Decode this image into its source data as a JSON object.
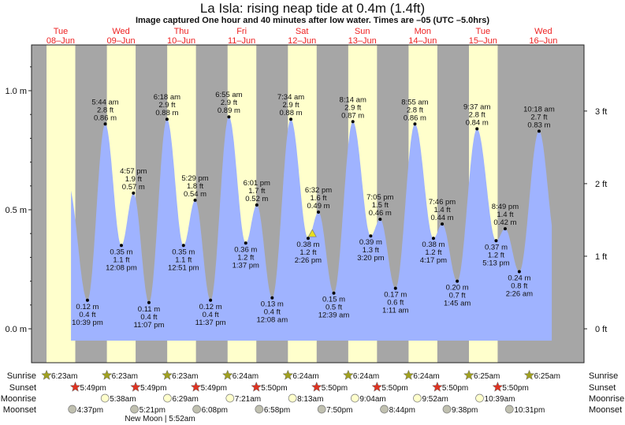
{
  "header": {
    "title": "La Isla: rising  neap tide at 0.4m (1.4ft)",
    "subtitle": "Image captured One hour and 40 minutes after low water. Times are –05 (UTC –5.0hrs)"
  },
  "colors": {
    "day": "#ffffcc",
    "night": "#a6a6a6",
    "water": "#9fb3ff",
    "day_label": "#ee2222",
    "sunrise_icon": "#a0a020",
    "sunset_icon": "#dd3322",
    "moonrise_icon": "#ffffcc",
    "moonset_icon": "#c0c0b0",
    "marker": "#e8e020"
  },
  "chart_data": {
    "type": "area",
    "title": "La Isla: rising  neap tide at 0.4m (1.4ft)",
    "days": [
      {
        "dow": "Tue",
        "date": "08–Jun"
      },
      {
        "dow": "Wed",
        "date": "09–Jun"
      },
      {
        "dow": "Thu",
        "date": "10–Jun"
      },
      {
        "dow": "Fri",
        "date": "11–Jun"
      },
      {
        "dow": "Sat",
        "date": "12–Jun"
      },
      {
        "dow": "Sun",
        "date": "13–Jun"
      },
      {
        "dow": "Mon",
        "date": "14–Jun"
      },
      {
        "dow": "Tue",
        "date": "15–Jun"
      },
      {
        "dow": "Wed",
        "date": "16–Jun"
      }
    ],
    "y_left": {
      "unit": "m",
      "ticks": [
        "0.0 m",
        "0.5 m",
        "1.0 m"
      ],
      "tick_values": [
        0,
        0.5,
        1.0
      ]
    },
    "y_right": {
      "unit": "ft",
      "ticks": [
        "0 ft",
        "1 ft",
        "2 ft",
        "3 ft"
      ],
      "tick_values": [
        0,
        1,
        2,
        3
      ]
    },
    "ylim_m": [
      -0.15,
      1.18
    ],
    "extremes": [
      {
        "day": 0,
        "time": "10:39 pm",
        "m": "0.12 m",
        "ft": "0.4 ft",
        "type": "low"
      },
      {
        "day": 1,
        "time": "5:44 am",
        "m": "0.86 m",
        "ft": "2.8 ft",
        "type": "high"
      },
      {
        "day": 1,
        "time": "12:08 pm",
        "m": "0.35 m",
        "ft": "1.1 ft",
        "type": "low"
      },
      {
        "day": 1,
        "time": "4:57 pm",
        "m": "0.57 m",
        "ft": "1.9 ft",
        "type": "high"
      },
      {
        "day": 1,
        "time": "11:07 pm",
        "m": "0.11 m",
        "ft": "0.4 ft",
        "type": "low"
      },
      {
        "day": 2,
        "time": "6:18 am",
        "m": "0.88 m",
        "ft": "2.9 ft",
        "type": "high"
      },
      {
        "day": 2,
        "time": "12:51 pm",
        "m": "0.35 m",
        "ft": "1.1 ft",
        "type": "low"
      },
      {
        "day": 2,
        "time": "5:29 pm",
        "m": "0.54 m",
        "ft": "1.8 ft",
        "type": "high"
      },
      {
        "day": 2,
        "time": "11:37 pm",
        "m": "0.12 m",
        "ft": "0.4 ft",
        "type": "low"
      },
      {
        "day": 3,
        "time": "6:55 am",
        "m": "0.89 m",
        "ft": "2.9 ft",
        "type": "high"
      },
      {
        "day": 3,
        "time": "1:37 pm",
        "m": "0.36 m",
        "ft": "1.2 ft",
        "type": "low"
      },
      {
        "day": 3,
        "time": "6:01 pm",
        "m": "0.52 m",
        "ft": "1.7 ft",
        "type": "high"
      },
      {
        "day": 4,
        "time": "12:08 am",
        "m": "0.13 m",
        "ft": "0.4 ft",
        "type": "low"
      },
      {
        "day": 4,
        "time": "7:34 am",
        "m": "0.88 m",
        "ft": "2.9 ft",
        "type": "high"
      },
      {
        "day": 4,
        "time": "2:26 pm",
        "m": "0.38 m",
        "ft": "1.2 ft",
        "type": "low"
      },
      {
        "day": 4,
        "time": "6:32 pm",
        "m": "0.49 m",
        "ft": "1.6 ft",
        "type": "high"
      },
      {
        "day": 5,
        "time": "12:39 am",
        "m": "0.15 m",
        "ft": "0.5 ft",
        "type": "low"
      },
      {
        "day": 5,
        "time": "8:14 am",
        "m": "0.87 m",
        "ft": "2.9 ft",
        "type": "high"
      },
      {
        "day": 5,
        "time": "3:20 pm",
        "m": "0.39 m",
        "ft": "1.3 ft",
        "type": "low"
      },
      {
        "day": 5,
        "time": "7:05 pm",
        "m": "0.46 m",
        "ft": "1.5 ft",
        "type": "high"
      },
      {
        "day": 6,
        "time": "1:11 am",
        "m": "0.17 m",
        "ft": "0.6 ft",
        "type": "low"
      },
      {
        "day": 6,
        "time": "8:55 am",
        "m": "0.86 m",
        "ft": "2.8 ft",
        "type": "high"
      },
      {
        "day": 6,
        "time": "4:17 pm",
        "m": "0.38 m",
        "ft": "1.2 ft",
        "type": "low"
      },
      {
        "day": 6,
        "time": "7:46 pm",
        "m": "0.44 m",
        "ft": "1.4 ft",
        "type": "high"
      },
      {
        "day": 7,
        "time": "1:45 am",
        "m": "0.20 m",
        "ft": "0.7 ft",
        "type": "low"
      },
      {
        "day": 7,
        "time": "9:37 am",
        "m": "0.84 m",
        "ft": "2.8 ft",
        "type": "high"
      },
      {
        "day": 7,
        "time": "5:13 pm",
        "m": "0.37 m",
        "ft": "1.2 ft",
        "type": "low"
      },
      {
        "day": 7,
        "time": "8:49 pm",
        "m": "0.42 m",
        "ft": "1.4 ft",
        "type": "high"
      },
      {
        "day": 8,
        "time": "2:26 am",
        "m": "0.24 m",
        "ft": "0.8 ft",
        "type": "low"
      },
      {
        "day": 8,
        "time": "10:18 am",
        "m": "0.83 m",
        "ft": "2.7 ft",
        "type": "high"
      }
    ],
    "current": {
      "day": 4,
      "time": "4:06 pm",
      "m": 0.4
    }
  },
  "almanac": {
    "row_labels": {
      "sunrise": "Sunrise",
      "sunset": "Sunset",
      "moonrise": "Moonrise",
      "moonset": "Moonset"
    },
    "sunrise": [
      {
        "day": 0,
        "time": "6:23am"
      },
      {
        "day": 1,
        "time": "6:23am"
      },
      {
        "day": 2,
        "time": "6:23am"
      },
      {
        "day": 3,
        "time": "6:24am"
      },
      {
        "day": 4,
        "time": "6:24am"
      },
      {
        "day": 5,
        "time": "6:24am"
      },
      {
        "day": 6,
        "time": "6:24am"
      },
      {
        "day": 7,
        "time": "6:25am"
      },
      {
        "day": 8,
        "time": "6:25am"
      }
    ],
    "sunset": [
      {
        "day": 0,
        "time": "5:49pm"
      },
      {
        "day": 1,
        "time": "5:49pm"
      },
      {
        "day": 2,
        "time": "5:49pm"
      },
      {
        "day": 3,
        "time": "5:50pm"
      },
      {
        "day": 4,
        "time": "5:50pm"
      },
      {
        "day": 5,
        "time": "5:50pm"
      },
      {
        "day": 6,
        "time": "5:50pm"
      },
      {
        "day": 7,
        "time": "5:50pm"
      }
    ],
    "moonrise": [
      {
        "day": 1,
        "time": "5:38am"
      },
      {
        "day": 2,
        "time": "6:29am"
      },
      {
        "day": 3,
        "time": "7:21am"
      },
      {
        "day": 4,
        "time": "8:13am"
      },
      {
        "day": 5,
        "time": "9:04am"
      },
      {
        "day": 6,
        "time": "9:52am"
      },
      {
        "day": 7,
        "time": "10:39am"
      }
    ],
    "moonset": [
      {
        "day": 0,
        "time": "4:37pm"
      },
      {
        "day": 1,
        "time": "5:21pm"
      },
      {
        "day": 2,
        "time": "6:08pm"
      },
      {
        "day": 3,
        "time": "6:58pm"
      },
      {
        "day": 4,
        "time": "7:50pm"
      },
      {
        "day": 5,
        "time": "8:44pm"
      },
      {
        "day": 6,
        "time": "9:38pm"
      },
      {
        "day": 7,
        "time": "10:31pm"
      }
    ],
    "moon_phase": "New Moon | 5:52am"
  }
}
